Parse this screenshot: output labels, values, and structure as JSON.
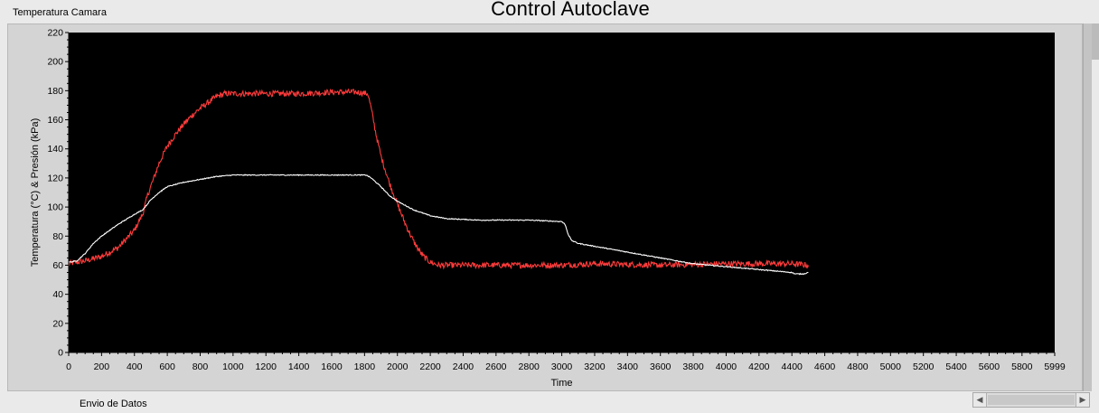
{
  "window": {
    "graph_label": "Temperatura Camara",
    "title": "Control Autoclave",
    "footer_label": "Envio de Datos"
  },
  "scrollbar": {
    "left_icon": "scroll-left-arrow-icon",
    "right_icon": "scroll-right-arrow-icon"
  },
  "chart_data": {
    "type": "line",
    "xlabel": "Time",
    "ylabel": "Temperatura (°C) & Presión (kPa)",
    "xlim": [
      0,
      5999
    ],
    "ylim": [
      0,
      220
    ],
    "x_ticks": [
      0,
      200,
      400,
      600,
      800,
      1000,
      1200,
      1400,
      1600,
      1800,
      2000,
      2200,
      2400,
      2600,
      2800,
      3000,
      3200,
      3400,
      3600,
      3800,
      4000,
      4200,
      4400,
      4600,
      4800,
      5000,
      5200,
      5400,
      5600,
      5800,
      5999
    ],
    "y_ticks": [
      0,
      20,
      40,
      60,
      80,
      100,
      120,
      140,
      160,
      180,
      200,
      220
    ],
    "background": "#000000",
    "grid": false,
    "series": [
      {
        "color": "#ff3b3b",
        "noise": 2,
        "points": [
          [
            0,
            61
          ],
          [
            100,
            63
          ],
          [
            200,
            66
          ],
          [
            300,
            72
          ],
          [
            400,
            84
          ],
          [
            450,
            95
          ],
          [
            480,
            108
          ],
          [
            550,
            130
          ],
          [
            600,
            142
          ],
          [
            650,
            150
          ],
          [
            700,
            157
          ],
          [
            750,
            163
          ],
          [
            800,
            168
          ],
          [
            850,
            172
          ],
          [
            900,
            176
          ],
          [
            950,
            178
          ],
          [
            1000,
            178
          ],
          [
            1200,
            178
          ],
          [
            1400,
            178
          ],
          [
            1600,
            179
          ],
          [
            1750,
            179
          ],
          [
            1820,
            178
          ],
          [
            1840,
            168
          ],
          [
            1870,
            150
          ],
          [
            1900,
            135
          ],
          [
            1950,
            117
          ],
          [
            2000,
            102
          ],
          [
            2050,
            88
          ],
          [
            2100,
            76
          ],
          [
            2150,
            67
          ],
          [
            2200,
            62
          ],
          [
            2250,
            60
          ],
          [
            2400,
            60
          ],
          [
            2600,
            60
          ],
          [
            3000,
            60
          ],
          [
            3200,
            61
          ],
          [
            3600,
            60
          ],
          [
            4000,
            61
          ],
          [
            4400,
            61
          ],
          [
            4500,
            60
          ]
        ]
      },
      {
        "color": "#ffffff",
        "noise": 0.3,
        "points": [
          [
            0,
            62
          ],
          [
            50,
            63
          ],
          [
            100,
            68
          ],
          [
            150,
            75
          ],
          [
            200,
            80
          ],
          [
            300,
            88
          ],
          [
            400,
            95
          ],
          [
            450,
            98
          ],
          [
            500,
            105
          ],
          [
            550,
            110
          ],
          [
            600,
            114
          ],
          [
            700,
            117
          ],
          [
            800,
            119
          ],
          [
            900,
            121
          ],
          [
            1000,
            122
          ],
          [
            1200,
            122
          ],
          [
            1400,
            122
          ],
          [
            1600,
            122
          ],
          [
            1810,
            122
          ],
          [
            1840,
            120
          ],
          [
            1900,
            114
          ],
          [
            1950,
            108
          ],
          [
            2000,
            104
          ],
          [
            2100,
            98
          ],
          [
            2200,
            94
          ],
          [
            2300,
            92
          ],
          [
            2500,
            91
          ],
          [
            2800,
            91
          ],
          [
            3000,
            90
          ],
          [
            3020,
            88
          ],
          [
            3040,
            81
          ],
          [
            3060,
            77
          ],
          [
            3100,
            75
          ],
          [
            3200,
            73
          ],
          [
            3400,
            69
          ],
          [
            3600,
            65
          ],
          [
            3800,
            61
          ],
          [
            4000,
            59
          ],
          [
            4200,
            57
          ],
          [
            4400,
            55
          ],
          [
            4420,
            54
          ],
          [
            4470,
            54
          ],
          [
            4500,
            55
          ]
        ]
      }
    ]
  }
}
